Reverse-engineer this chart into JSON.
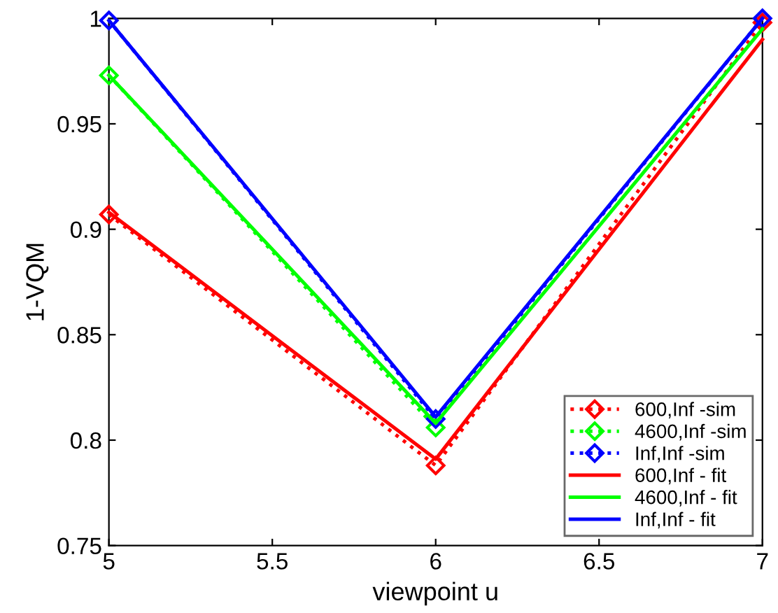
{
  "chart_data": {
    "type": "line",
    "xlabel": "viewpoint u",
    "ylabel": "1-VQM",
    "x": [
      5,
      6,
      7
    ],
    "series": [
      {
        "name": "600,Inf -sim",
        "color": "#ff0000",
        "values": [
          0.907,
          0.788,
          0.998
        ],
        "marker": "diamond",
        "line_style": "dotted"
      },
      {
        "name": "4600,Inf -sim",
        "color": "#00ff00",
        "values": [
          0.973,
          0.806,
          null
        ],
        "marker": "diamond",
        "line_style": "dotted"
      },
      {
        "name": "Inf,Inf -sim",
        "color": "#0000ff",
        "values": [
          0.999,
          0.81,
          1.0
        ],
        "marker": "diamond",
        "line_style": "dotted"
      },
      {
        "name": "600,Inf - fit",
        "color": "#ff0000",
        "values": [
          0.908,
          0.791,
          0.99
        ],
        "marker": "none",
        "line_style": "solid"
      },
      {
        "name": "4600,Inf - fit",
        "color": "#00ff00",
        "values": [
          0.973,
          0.808,
          0.995
        ],
        "marker": "none",
        "line_style": "solid"
      },
      {
        "name": "Inf,Inf - fit",
        "color": "#0000ff",
        "values": [
          0.999,
          0.811,
          1.0
        ],
        "marker": "none",
        "line_style": "solid"
      }
    ],
    "xlim": [
      5,
      7
    ],
    "xticks": [
      5,
      5.5,
      6,
      6.5,
      7
    ],
    "ylim": [
      0.75,
      1
    ],
    "yticks": [
      0.75,
      0.8,
      0.85,
      0.9,
      0.95,
      1
    ],
    "grid": false,
    "legend": "bottom right"
  }
}
